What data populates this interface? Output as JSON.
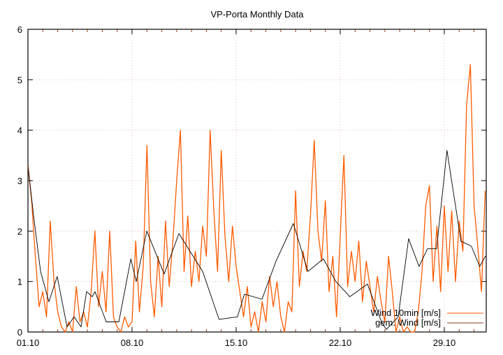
{
  "chart_data": {
    "type": "line",
    "title": "VP-Porta Monthly Data",
    "xlabel": "",
    "ylabel": "",
    "xlim": [
      0,
      30.8
    ],
    "ylim": [
      0,
      6
    ],
    "grid": true,
    "legend_placement": "bottom-right",
    "x_ticks": [
      {
        "value": 0,
        "label": "01.10"
      },
      {
        "value": 7,
        "label": "08.10"
      },
      {
        "value": 14,
        "label": "15.10"
      },
      {
        "value": 21,
        "label": "22.10"
      },
      {
        "value": 28,
        "label": "29.10"
      }
    ],
    "y_ticks": [
      0,
      1,
      2,
      3,
      4,
      5,
      6
    ],
    "series": [
      {
        "name": "Wind 10min [m/s]",
        "color": "#ff5a00",
        "x_step_days": 0.25,
        "values": [
          3.3,
          2.6,
          1.5,
          0.5,
          0.8,
          0.3,
          2.2,
          1.0,
          0.4,
          0.1,
          0.0,
          0.2,
          0.0,
          0.9,
          0.2,
          0.4,
          0.1,
          0.8,
          2.0,
          0.5,
          1.2,
          0.4,
          2.0,
          0.3,
          0.1,
          0.0,
          0.3,
          0.1,
          0.2,
          1.8,
          0.4,
          1.3,
          3.7,
          1.0,
          0.3,
          1.5,
          0.5,
          2.2,
          0.9,
          1.8,
          3.0,
          4.0,
          1.2,
          2.3,
          0.9,
          1.6,
          1.0,
          2.1,
          1.5,
          4.0,
          2.4,
          1.2,
          3.6,
          1.9,
          1.0,
          2.1,
          1.3,
          0.8,
          0.3,
          0.9,
          0.1,
          0.4,
          0.0,
          0.6,
          0.2,
          1.1,
          0.5,
          1.0,
          0.3,
          0.0,
          0.6,
          0.4,
          2.8,
          0.9,
          1.6,
          1.2,
          2.3,
          3.8,
          2.0,
          1.4,
          2.6,
          0.8,
          1.5,
          0.3,
          1.9,
          3.5,
          0.9,
          1.6,
          1.0,
          1.8,
          0.6,
          1.4,
          0.9,
          0.4,
          1.1,
          0.6,
          0.2,
          1.5,
          0.8,
          0.0,
          0.3,
          0.0,
          0.1,
          0.0,
          0.0,
          0.4,
          1.2,
          2.5,
          2.9,
          1.0,
          2.1,
          0.8,
          2.5,
          1.2,
          2.4,
          1.0,
          2.2,
          1.6,
          4.5,
          5.3,
          2.5,
          1.7,
          0.8,
          2.8
        ]
      },
      {
        "name": "gem. Wind [m/s]",
        "color": "#000000",
        "x": [
          0,
          0.38,
          0.85,
          1.41,
          1.97,
          2.63,
          3.1,
          3.57,
          3.94,
          4.32,
          4.51,
          5.26,
          6.11,
          6.92,
          7.28,
          7.99,
          9.16,
          10.15,
          11.75,
          12.85,
          14.09,
          14.56,
          15.74,
          16.68,
          17.85,
          18.83,
          19.87,
          20.71,
          21.65,
          22.83,
          23.77,
          24.1,
          24.9,
          25.6,
          26.3,
          26.87,
          27.48,
          28.18,
          29.12,
          29.82,
          30.38,
          30.76,
          31.23,
          31.51
        ],
        "values": [
          3.3,
          2.3,
          1.2,
          0.6,
          1.1,
          0.1,
          0.3,
          0.1,
          0.8,
          0.7,
          0.8,
          0.2,
          0.2,
          1.45,
          1.0,
          2.0,
          1.15,
          1.95,
          1.2,
          0.25,
          0.3,
          0.75,
          0.65,
          1.4,
          2.15,
          1.2,
          1.45,
          1.0,
          0.7,
          0.95,
          0.2,
          0.05,
          0.3,
          1.85,
          1.3,
          1.65,
          1.65,
          3.6,
          1.8,
          1.7,
          1.3,
          1.5,
          1.5,
          1.5
        ]
      }
    ]
  }
}
